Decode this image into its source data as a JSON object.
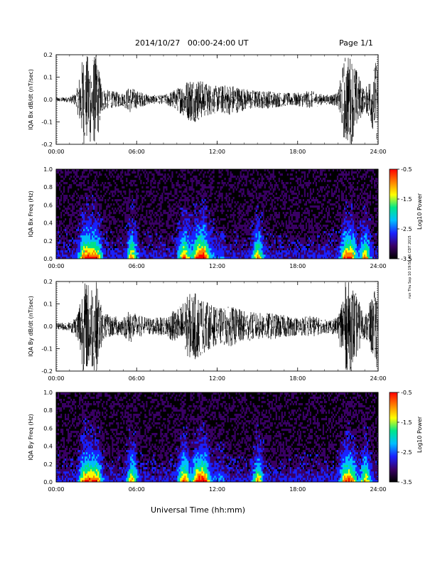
{
  "header": {
    "title": "2014/10/27   00:00-24:00 UT",
    "page": "Page 1/1"
  },
  "footer": {
    "xlabel": "Universal Time (hh:mm)",
    "stamp": "run Thu Sep 10 19:58:46 CDT 2015"
  },
  "colors": {
    "trace": "#000000",
    "spectrogram_background": "#000000",
    "colorscale": [
      "#000000",
      "#3a0066",
      "#1a22ff",
      "#00bfff",
      "#00e68a",
      "#ffff00",
      "#ff8000",
      "#ff0000"
    ]
  },
  "chart_data": [
    {
      "type": "line",
      "ylabel": "IQA Bx dB/dt (nT/sec)",
      "xticks": [
        "00:00",
        "06:00",
        "12:00",
        "18:00",
        "24:00"
      ],
      "yticks": [
        "-0.2",
        "-0.1",
        "0.0",
        "0.1",
        "0.2"
      ],
      "xlim": [
        0,
        24
      ],
      "ylim": [
        -0.2,
        0.2
      ],
      "series": [
        {
          "x_hours": [
            0,
            1,
            1.5,
            2.0,
            2.5,
            3.0,
            3.5,
            4.0,
            5.0,
            5.5,
            6.0,
            7.0,
            8.0,
            9.0,
            10.0,
            10.5,
            11.0,
            12.0,
            13.0,
            14.0,
            15.0,
            16.0,
            17.0,
            18.0,
            19.0,
            20.0,
            21.0,
            21.5,
            22.0,
            23.0,
            24.0
          ],
          "envelope": [
            0.01,
            0.012,
            0.03,
            0.2,
            0.2,
            0.2,
            0.05,
            0.04,
            0.03,
            0.06,
            0.04,
            0.02,
            0.02,
            0.05,
            0.1,
            0.1,
            0.08,
            0.06,
            0.07,
            0.05,
            0.04,
            0.04,
            0.03,
            0.03,
            0.04,
            0.02,
            0.03,
            0.2,
            0.2,
            0.04,
            0.2
          ]
        }
      ]
    },
    {
      "type": "heatmap",
      "ylabel": "IQA Bx Freq (Hz)",
      "xticks": [
        "00:00",
        "06:00",
        "12:00",
        "18:00",
        "24:00"
      ],
      "yticks": [
        "0.0",
        "0.2",
        "0.4",
        "0.6",
        "0.8",
        "1.0"
      ],
      "xlim": [
        0,
        24
      ],
      "ylim": [
        0,
        1
      ],
      "colorbar": {
        "label": "Log10 Power",
        "ticks": [
          "-0.5",
          "-1.5",
          "-2.5",
          "-3.5"
        ],
        "range": [
          -3.5,
          -0.5
        ]
      },
      "activity_hours": [
        2.0,
        2.5,
        3.0,
        5.6,
        9.5,
        10.5,
        11.0,
        15.0,
        21.5,
        22.0,
        23.0
      ]
    },
    {
      "type": "line",
      "ylabel": "IQA By dB/dt (nT/sec)",
      "xticks": [
        "00:00",
        "06:00",
        "12:00",
        "18:00",
        "24:00"
      ],
      "yticks": [
        "-0.2",
        "-0.1",
        "0.0",
        "0.1",
        "0.2"
      ],
      "xlim": [
        0,
        24
      ],
      "ylim": [
        -0.2,
        0.2
      ],
      "series": [
        {
          "x_hours": [
            0,
            1,
            1.5,
            2.0,
            2.5,
            3.0,
            3.5,
            4.0,
            5.0,
            5.5,
            6.0,
            7.0,
            8.0,
            9.0,
            10.0,
            10.5,
            11.0,
            12.0,
            13.0,
            14.0,
            15.0,
            16.0,
            17.0,
            18.0,
            19.0,
            20.0,
            21.0,
            21.5,
            22.0,
            23.0,
            24.0
          ],
          "envelope": [
            0.015,
            0.02,
            0.05,
            0.2,
            0.2,
            0.2,
            0.06,
            0.05,
            0.04,
            0.08,
            0.05,
            0.04,
            0.04,
            0.08,
            0.15,
            0.15,
            0.12,
            0.08,
            0.09,
            0.07,
            0.06,
            0.06,
            0.05,
            0.04,
            0.05,
            0.03,
            0.04,
            0.2,
            0.2,
            0.05,
            0.2
          ]
        }
      ]
    },
    {
      "type": "heatmap",
      "ylabel": "IQA By Freq (Hz)",
      "xticks": [
        "00:00",
        "06:00",
        "12:00",
        "18:00",
        "24:00"
      ],
      "yticks": [
        "0.0",
        "0.2",
        "0.4",
        "0.6",
        "0.8",
        "1.0"
      ],
      "xlim": [
        0,
        24
      ],
      "ylim": [
        0,
        1
      ],
      "colorbar": {
        "label": "Log10 Power",
        "ticks": [
          "-0.5",
          "-1.5",
          "-2.5",
          "-3.5"
        ],
        "range": [
          -3.5,
          -0.5
        ]
      },
      "activity_hours": [
        2.0,
        2.5,
        3.0,
        5.6,
        9.5,
        10.5,
        11.0,
        15.0,
        21.5,
        22.0,
        23.0
      ]
    }
  ]
}
